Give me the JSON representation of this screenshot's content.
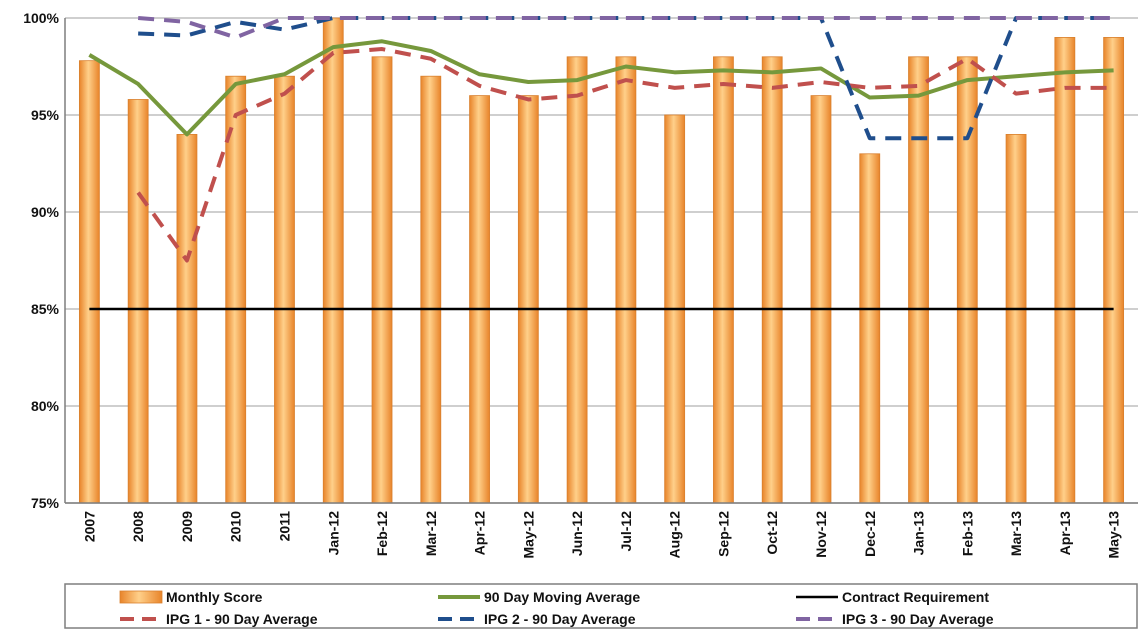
{
  "chart_data": {
    "type": "bar",
    "categories": [
      "2007",
      "2008",
      "2009",
      "2010",
      "2011",
      "Jan-12",
      "Feb-12",
      "Mar-12",
      "Apr-12",
      "May-12",
      "Jun-12",
      "Jul-12",
      "Aug-12",
      "Sep-12",
      "Oct-12",
      "Nov-12",
      "Dec-12",
      "Jan-13",
      "Feb-13",
      "Mar-13",
      "Apr-13",
      "May-13"
    ],
    "y_ticks": [
      "100%",
      "95%",
      "90%",
      "85%",
      "80%",
      "75%"
    ],
    "ylim": [
      75,
      100
    ],
    "grid": true,
    "legend_position": "bottom",
    "series": [
      {
        "name": "Monthly Score",
        "kind": "bar",
        "color": "#F7A541",
        "values": [
          97.8,
          95.8,
          94.0,
          97.0,
          97.0,
          100.0,
          98.0,
          97.0,
          96.0,
          96.0,
          98.0,
          98.0,
          95.0,
          98.0,
          98.0,
          96.0,
          93.0,
          98.0,
          98.0,
          94.0,
          99.0,
          99.0
        ]
      },
      {
        "name": "90 Day Moving Average",
        "kind": "line",
        "color": "#76983C",
        "values": [
          98.1,
          96.6,
          94.0,
          96.6,
          97.1,
          98.5,
          98.8,
          98.3,
          97.1,
          96.7,
          96.8,
          97.5,
          97.2,
          97.3,
          97.2,
          97.4,
          95.9,
          96.0,
          96.8,
          97.0,
          97.2,
          97.3
        ]
      },
      {
        "name": "Contract Requirement",
        "kind": "line",
        "color": "#000000",
        "values": [
          85,
          85,
          85,
          85,
          85,
          85,
          85,
          85,
          85,
          85,
          85,
          85,
          85,
          85,
          85,
          85,
          85,
          85,
          85,
          85,
          85,
          85
        ]
      },
      {
        "name": "IPG 1 - 90 Day Average",
        "kind": "dashed",
        "color": "#C0504D",
        "values": [
          null,
          91.0,
          87.5,
          95.0,
          96.1,
          98.2,
          98.4,
          97.9,
          96.5,
          95.8,
          96.0,
          96.8,
          96.4,
          96.6,
          96.4,
          96.7,
          96.4,
          96.5,
          97.9,
          96.1,
          96.4,
          96.4
        ]
      },
      {
        "name": "IPG 2 - 90 Day Average",
        "kind": "dashed",
        "color": "#1F4E8C",
        "values": [
          null,
          99.2,
          99.1,
          99.8,
          99.4,
          100,
          100,
          100,
          100,
          100,
          100,
          100,
          100,
          100,
          100,
          100,
          93.8,
          93.8,
          93.8,
          100,
          100,
          100
        ]
      },
      {
        "name": "IPG 3 - 90 Day Average",
        "kind": "dashed",
        "color": "#8064A2",
        "values": [
          null,
          100,
          99.8,
          99.0,
          100,
          100,
          100,
          100,
          100,
          100,
          100,
          100,
          100,
          100,
          100,
          100,
          100,
          100,
          100,
          100,
          100,
          100
        ]
      }
    ]
  }
}
